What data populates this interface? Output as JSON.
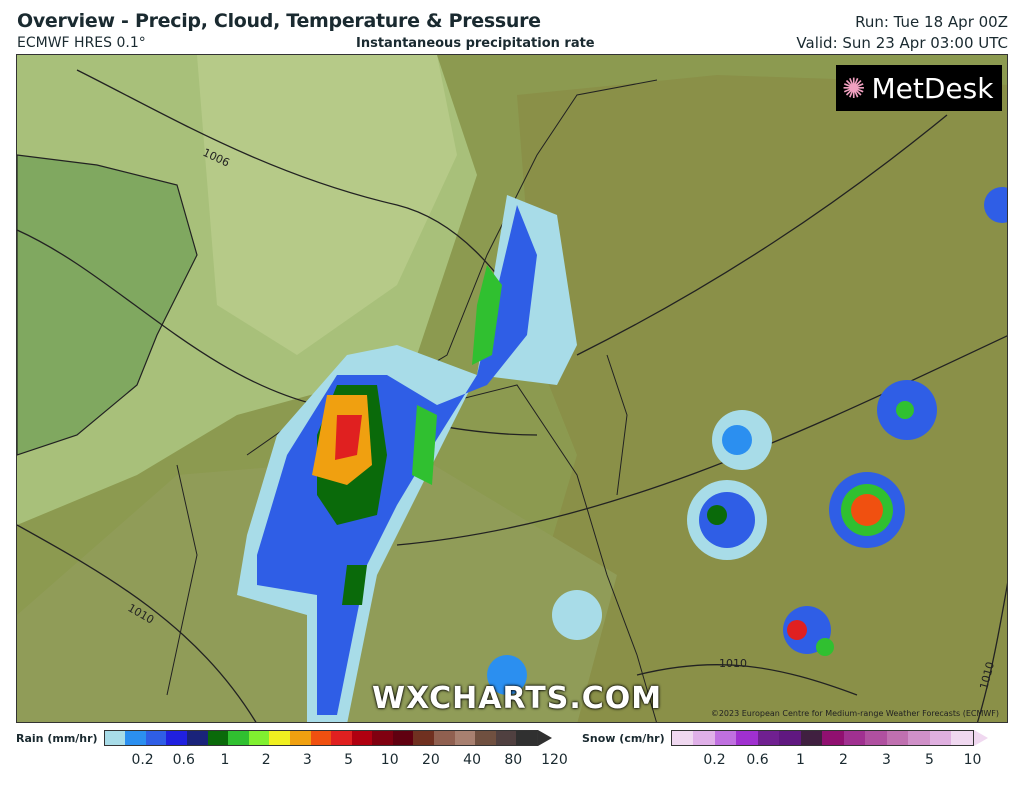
{
  "header": {
    "title": "Overview - Precip, Cloud, Temperature & Pressure",
    "model": "ECMWF HRES 0.1°",
    "field": "Instantaneous precipitation rate",
    "run": "Run: Tue 18 Apr 00Z",
    "valid": "Valid: Sun 23 Apr 03:00 UTC"
  },
  "map": {
    "logo": "MetDesk",
    "watermark": "WXCHARTS.COM",
    "copyright": "©2023 European Centre for Medium-range Weather Forecasts (ECMWF)",
    "isobars": [
      "1006",
      "1010",
      "1010",
      "1010"
    ]
  },
  "legend": {
    "rain": {
      "label": "Rain (mm/hr)",
      "ticks": [
        "0.2",
        "0.6",
        "1",
        "2",
        "3",
        "5",
        "10",
        "20",
        "40",
        "80",
        "120"
      ],
      "colors": [
        "#a8dce8",
        "#2b8ff0",
        "#2f5ee6",
        "#2020e0",
        "#1a237a",
        "#0a6a0a",
        "#30c030",
        "#80f030",
        "#f0f020",
        "#f0a010",
        "#f05010",
        "#e02020",
        "#b00010",
        "#800010",
        "#600010",
        "#703020",
        "#906050",
        "#a88070",
        "#705040",
        "#504040",
        "#303030"
      ]
    },
    "snow": {
      "label": "Snow (cm/hr)",
      "ticks": [
        "0.2",
        "0.6",
        "1",
        "2",
        "3",
        "5",
        "10"
      ],
      "colors": [
        "#f0d8f0",
        "#e0b0e8",
        "#c070e0",
        "#a030d0",
        "#702090",
        "#601880",
        "#402040",
        "#901070",
        "#a03090",
        "#b050a0",
        "#c070b0",
        "#d090c8",
        "#e0b0e0",
        "#f0d8f0"
      ]
    }
  }
}
